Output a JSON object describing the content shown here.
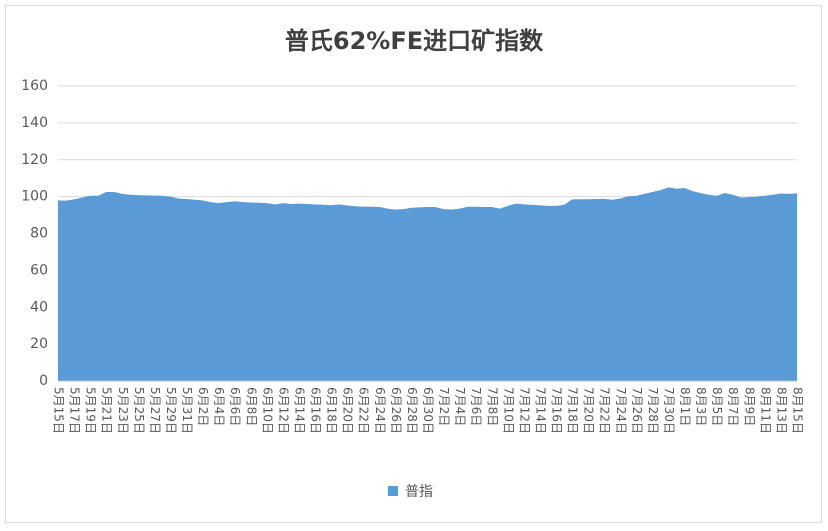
{
  "chart_data": {
    "type": "area",
    "title": "普氏62%FE进口矿指数",
    "categories": [
      "5月15日",
      null,
      "5月17日",
      null,
      "5月19日",
      null,
      "5月21日",
      null,
      "5月23日",
      null,
      "5月25日",
      null,
      "5月27日",
      null,
      "5月29日",
      null,
      "5月31日",
      null,
      "6月2日",
      null,
      "6月4日",
      null,
      "6月6日",
      null,
      "6月8日",
      null,
      "6月10日",
      null,
      "6月12日",
      null,
      "6月14日",
      null,
      "6月16日",
      null,
      "6月18日",
      null,
      "6月20日",
      null,
      "6月22日",
      null,
      "6月24日",
      null,
      "6月26日",
      null,
      "6月28日",
      null,
      "6月30日",
      null,
      "7月2日",
      null,
      "7月4日",
      null,
      "7月6日",
      null,
      "7月8日",
      null,
      "7月10日",
      null,
      "7月12日",
      null,
      "7月14日",
      null,
      "7月16日",
      null,
      "7月18日",
      null,
      "7月20日",
      null,
      "7月22日",
      null,
      "7月24日",
      null,
      "7月26日",
      null,
      "7月28日",
      null,
      "7月30日",
      null,
      "8月1日",
      null,
      "8月3日",
      null,
      "8月5日",
      null,
      "8月7日",
      null,
      "8月9日",
      null,
      "8月11日",
      null,
      "8月13日",
      null,
      "8月15日"
    ],
    "series": [
      {
        "name": "普指",
        "color": "#5b9bd5",
        "values": [
          98,
          97.8,
          98.5,
          99.5,
          100.5,
          100.5,
          102.5,
          102.5,
          101.5,
          101,
          100.8,
          100.7,
          100.6,
          100.5,
          100,
          99,
          98.7,
          98.3,
          98,
          97,
          96.5,
          97,
          97.5,
          97,
          96.8,
          96.7,
          96.5,
          95.8,
          96.5,
          96,
          96.2,
          96,
          95.8,
          95.6,
          95.3,
          95.8,
          95.2,
          94.8,
          94.6,
          94.5,
          94.4,
          93.5,
          93,
          93.2,
          94,
          94.2,
          94.4,
          94.3,
          93.2,
          93,
          93.5,
          94.5,
          94.5,
          94.4,
          94.4,
          93.5,
          95,
          96.2,
          95.8,
          95.5,
          95.3,
          95,
          95,
          95.5,
          98.5,
          98.6,
          98.6,
          98.7,
          98.8,
          98.3,
          99,
          100.2,
          100.4,
          101.5,
          102.5,
          103.5,
          105,
          104.3,
          104.7,
          103,
          102,
          101,
          100.5,
          102,
          101,
          99.5,
          99.7,
          100,
          100.5,
          101,
          101.7,
          101.5,
          101.8
        ]
      }
    ],
    "ylim": [
      0,
      160
    ],
    "yticks": [
      0,
      20,
      40,
      60,
      80,
      100,
      120,
      140,
      160
    ],
    "grid": true,
    "legend": "bottom"
  }
}
